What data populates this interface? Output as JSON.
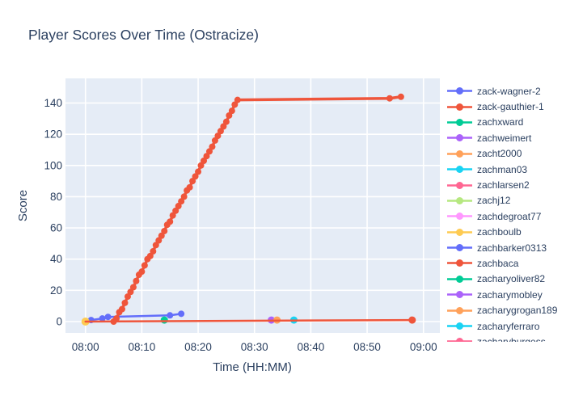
{
  "title": "Player Scores Over Time (Ostracize)",
  "chart_data": {
    "type": "line",
    "title": "Player Scores Over Time (Ostracize)",
    "xlabel": "Time (HH:MM)",
    "ylabel": "Score",
    "x_ticks": [
      "08:00",
      "08:10",
      "08:20",
      "08:30",
      "08:40",
      "08:50",
      "09:00"
    ],
    "y_ticks": [
      0,
      20,
      40,
      60,
      80,
      100,
      120,
      140
    ],
    "xlim_hhmm": [
      "07:56",
      "09:03"
    ],
    "ylim": [
      -7.3,
      155.8
    ],
    "grid": true,
    "legend_position": "right",
    "plot_bg_color": "#E5ECF6",
    "grid_color": "#FFFFFF",
    "text_color": "#2A3F5F",
    "series": [
      {
        "name": "zack-wagner-2",
        "color": "#636EFA",
        "line_width": 2.5,
        "marker_size": 4,
        "points": [
          [
            "08:01",
            1
          ],
          [
            "08:03",
            2
          ],
          [
            "08:04",
            3
          ],
          [
            "08:15",
            4
          ],
          [
            "08:17",
            5
          ]
        ]
      },
      {
        "name": "zack-gauthier-1",
        "color": "#EF553B",
        "line_width": 3.5,
        "marker_size": 4,
        "points": [
          [
            "08:05:00",
            0
          ],
          [
            "08:05:30",
            2
          ],
          [
            "08:06:00",
            6
          ],
          [
            "08:06:30",
            8
          ],
          [
            "08:07:00",
            12
          ],
          [
            "08:07:30",
            16
          ],
          [
            "08:08:00",
            19
          ],
          [
            "08:08:30",
            22
          ],
          [
            "08:09:00",
            26
          ],
          [
            "08:09:30",
            30
          ],
          [
            "08:10:00",
            32
          ],
          [
            "08:10:30",
            36
          ],
          [
            "08:11:00",
            40
          ],
          [
            "08:11:30",
            42
          ],
          [
            "08:12:00",
            45
          ],
          [
            "08:12:30",
            49
          ],
          [
            "08:13:00",
            52
          ],
          [
            "08:13:30",
            55
          ],
          [
            "08:14:00",
            58
          ],
          [
            "08:14:30",
            62
          ],
          [
            "08:15:00",
            64
          ],
          [
            "08:15:30",
            68
          ],
          [
            "08:16:00",
            71
          ],
          [
            "08:16:30",
            74
          ],
          [
            "08:17:00",
            77
          ],
          [
            "08:17:30",
            80
          ],
          [
            "08:18:00",
            84
          ],
          [
            "08:18:30",
            86
          ],
          [
            "08:19:00",
            90
          ],
          [
            "08:19:30",
            93
          ],
          [
            "08:20:00",
            96
          ],
          [
            "08:20:30",
            100
          ],
          [
            "08:21:00",
            103
          ],
          [
            "08:21:30",
            106
          ],
          [
            "08:22:00",
            109
          ],
          [
            "08:22:30",
            112
          ],
          [
            "08:23:00",
            116
          ],
          [
            "08:23:30",
            119
          ],
          [
            "08:24:00",
            122
          ],
          [
            "08:24:30",
            125
          ],
          [
            "08:25:00",
            128
          ],
          [
            "08:25:30",
            132
          ],
          [
            "08:26:00",
            135
          ],
          [
            "08:26:30",
            139
          ],
          [
            "08:27:00",
            142
          ],
          [
            "08:54:00",
            143
          ],
          [
            "08:56:00",
            144
          ]
        ]
      },
      {
        "name": "zachxward",
        "color": "#00CC96",
        "line_width": 2.5,
        "marker_size": 4.5,
        "points": [
          [
            "08:14",
            1
          ]
        ]
      },
      {
        "name": "zachweimert",
        "color": "#AB63FA",
        "line_width": 2.5,
        "marker_size": 4.5,
        "points": [
          [
            "08:33",
            1
          ]
        ]
      },
      {
        "name": "zacht2000",
        "color": "#FFA15A",
        "line_width": 2.5,
        "marker_size": 4.5,
        "points": [
          [
            "08:34",
            1
          ]
        ]
      },
      {
        "name": "zachman03",
        "color": "#19D3F3",
        "line_width": 2.5,
        "marker_size": 4.5,
        "points": [
          [
            "08:37",
            1
          ]
        ]
      },
      {
        "name": "zachlarsen2",
        "color": "#FF6692",
        "line_width": 2.5,
        "marker_size": 4.5,
        "points": []
      },
      {
        "name": "zachj12",
        "color": "#B6E880",
        "line_width": 2.5,
        "marker_size": 4.5,
        "points": []
      },
      {
        "name": "zachdegroat77",
        "color": "#FF97FF",
        "line_width": 2.5,
        "marker_size": 4.5,
        "points": []
      },
      {
        "name": "zachboulb",
        "color": "#FECB52",
        "line_width": 2.5,
        "marker_size": 5,
        "points": [
          [
            "08:00",
            0
          ]
        ]
      },
      {
        "name": "zachbarker0313",
        "color": "#636EFA",
        "line_width": 2.5,
        "marker_size": 4.5,
        "points": []
      },
      {
        "name": "zachbaca",
        "color": "#EF553B",
        "line_width": 2.5,
        "marker_size": 4.5,
        "start_marker": false,
        "points": [
          [
            "08:00",
            0
          ],
          [
            "08:58",
            1
          ]
        ]
      },
      {
        "name": "zacharyoliver82",
        "color": "#00CC96",
        "line_width": 2.5,
        "marker_size": 4.5,
        "points": []
      },
      {
        "name": "zacharymobley",
        "color": "#AB63FA",
        "line_width": 2.5,
        "marker_size": 4.5,
        "points": []
      },
      {
        "name": "zacharygrogan189",
        "color": "#FFA15A",
        "line_width": 2.5,
        "marker_size": 4.5,
        "points": []
      },
      {
        "name": "zacharyferraro",
        "color": "#19D3F3",
        "line_width": 2.5,
        "marker_size": 4.5,
        "points": []
      },
      {
        "name": "zacharyburgess",
        "color": "#FF6692",
        "line_width": 2.5,
        "marker_size": 4.5,
        "points": []
      }
    ]
  }
}
